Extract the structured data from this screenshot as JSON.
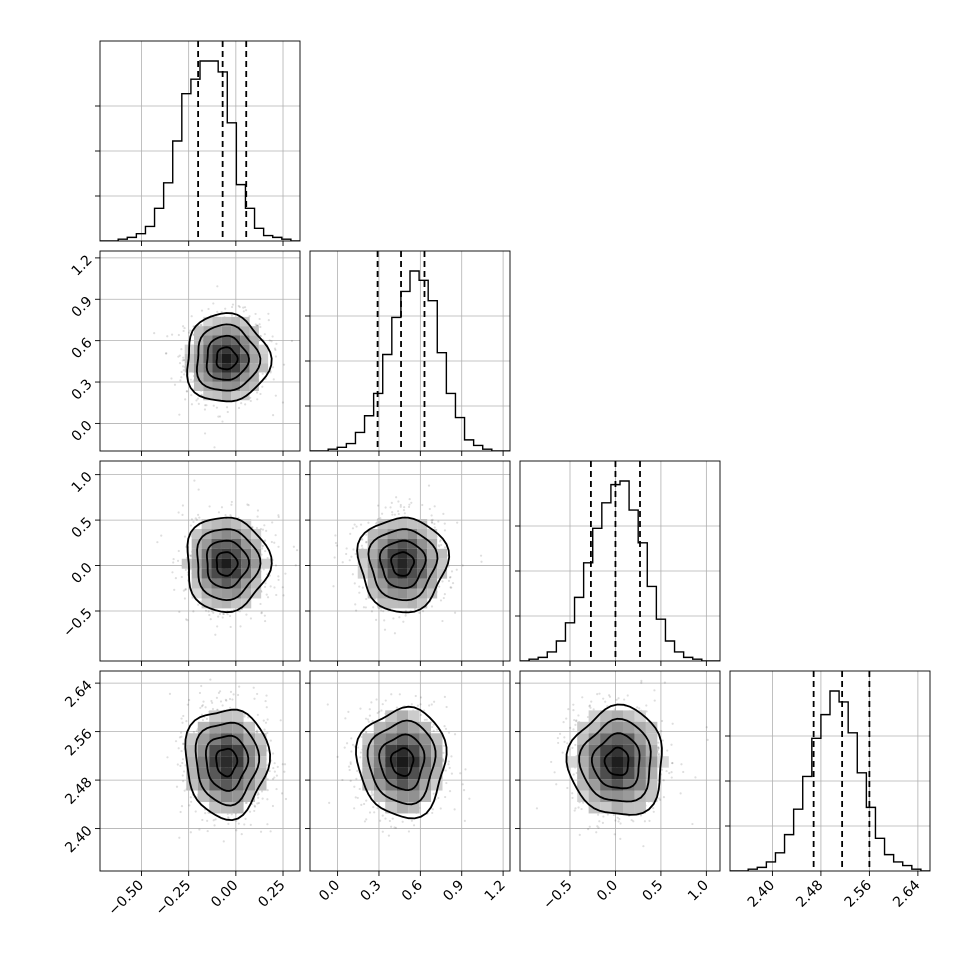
{
  "chart_data": {
    "type": "corner",
    "parameters": [
      {
        "range": [
          -0.72,
          0.34
        ],
        "ticks": [
          -0.5,
          -0.25,
          0.0,
          0.25
        ],
        "tick_labels": [
          "−0.50",
          "−0.25",
          "0.00",
          "0.25"
        ],
        "quantiles": [
          -0.2,
          -0.07,
          0.055
        ],
        "center": -0.05,
        "sigma": 0.11,
        "hist": [
          0,
          0,
          1,
          2,
          4,
          8,
          18,
          32,
          55,
          81,
          89,
          99,
          99,
          93,
          65,
          31,
          18,
          7,
          3,
          2,
          1,
          0
        ]
      },
      {
        "range": [
          -0.2,
          1.25
        ],
        "ticks": [
          0.0,
          0.3,
          0.6,
          0.9,
          1.2
        ],
        "tick_labels": [
          "0.0",
          "0.3",
          "0.6",
          "0.9",
          "1.2"
        ],
        "quantiles": [
          0.29,
          0.46,
          0.63
        ],
        "center": 0.47,
        "sigma": 0.16,
        "hist": [
          0,
          0,
          1,
          2,
          4,
          10,
          19,
          31,
          52,
          72,
          86,
          97,
          92,
          81,
          53,
          31,
          18,
          6,
          3,
          1,
          0,
          0
        ]
      },
      {
        "range": [
          -1.05,
          1.15
        ],
        "ticks": [
          -0.5,
          0.0,
          0.5,
          1.0
        ],
        "tick_labels": [
          "−0.5",
          "0.0",
          "0.5",
          "1.0"
        ],
        "quantiles": [
          -0.27,
          0.0,
          0.27
        ],
        "center": 0.02,
        "sigma": 0.26,
        "hist": [
          0,
          1,
          2,
          5,
          11,
          21,
          35,
          54,
          73,
          87,
          97,
          99,
          83,
          65,
          41,
          23,
          11,
          5,
          2,
          1,
          0,
          0
        ]
      },
      {
        "range": [
          2.33,
          2.66
        ],
        "ticks": [
          2.4,
          2.48,
          2.56,
          2.64
        ],
        "tick_labels": [
          "2.40",
          "2.48",
          "2.56",
          "2.64"
        ],
        "quantiles": [
          2.468,
          2.515,
          2.56
        ],
        "center": 2.51,
        "sigma": 0.045,
        "hist": [
          0,
          0,
          1,
          2,
          5,
          10,
          20,
          34,
          52,
          73,
          86,
          99,
          93,
          76,
          54,
          35,
          18,
          9,
          5,
          3,
          1,
          0
        ]
      }
    ],
    "contour_levels_sigma": [
      0.5,
      1.0,
      1.5,
      2.0
    ],
    "scatter_points_per_panel": 900,
    "grid": true,
    "xlabel": "",
    "ylabel": "",
    "title": ""
  }
}
